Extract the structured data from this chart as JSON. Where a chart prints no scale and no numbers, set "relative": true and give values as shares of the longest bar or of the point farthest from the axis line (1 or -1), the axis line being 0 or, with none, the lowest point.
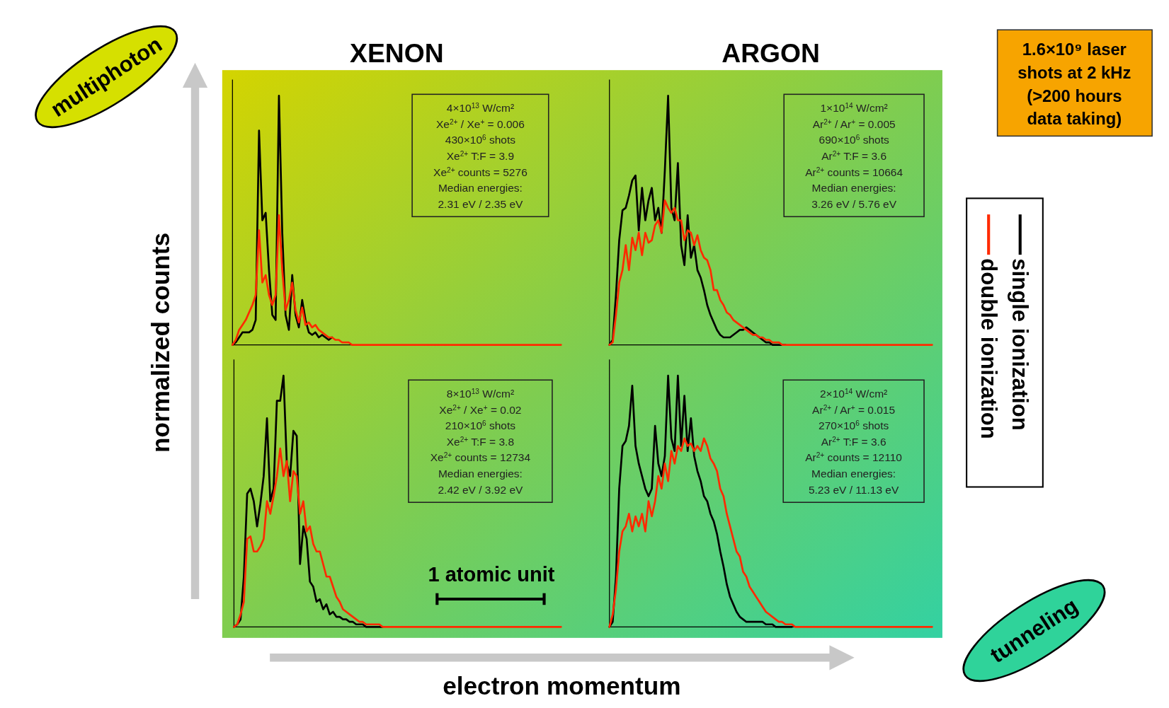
{
  "chart_data": [
    {
      "type": "line",
      "title": "XENON",
      "ylabel": "normalized counts",
      "xlabel": "electron momentum",
      "relative": true,
      "categories": [
        null,
        null,
        null,
        null,
        null,
        null,
        null,
        null,
        null,
        null,
        null,
        null,
        null,
        null,
        null,
        null,
        null,
        null,
        null,
        null,
        null,
        null,
        null,
        null,
        null,
        null,
        null,
        null,
        null,
        null,
        null,
        null,
        null,
        null,
        null,
        null,
        null,
        null,
        null,
        null,
        null,
        null,
        null,
        null,
        null,
        null,
        null,
        null,
        null,
        null,
        null,
        null,
        null,
        null,
        null,
        null,
        null,
        null,
        null,
        null,
        null,
        null,
        null,
        null,
        null,
        null,
        null,
        null,
        null,
        null,
        null,
        null,
        null,
        null,
        null,
        null,
        null,
        null,
        null,
        null,
        null,
        null,
        null,
        null,
        null,
        null,
        null,
        null,
        null,
        null,
        null,
        null,
        null,
        null,
        null,
        null,
        null,
        null,
        null,
        null
      ],
      "series": [
        {
          "color": "#000000",
          "values": [
            0,
            0.01,
            0.03,
            0.05,
            0.05,
            0.05,
            0.06,
            0.1,
            0.86,
            0.5,
            0.53,
            0.3,
            0.12,
            0.1,
            1.0,
            0.45,
            0.12,
            0.06,
            0.28,
            0.12,
            0.07,
            0.18,
            0.1,
            0.05,
            0.04,
            0.05,
            0.03,
            0.04,
            0.03,
            0.02,
            0.03,
            null,
            null,
            null,
            null,
            null,
            null,
            null,
            null,
            null,
            null,
            null,
            null,
            null,
            null,
            null,
            null,
            null,
            null,
            null,
            null,
            null,
            null,
            null,
            null,
            null,
            null,
            null,
            null,
            null,
            null,
            null,
            null,
            null,
            null,
            null,
            null,
            null,
            null,
            null,
            null,
            null,
            null,
            null,
            null,
            null,
            null,
            null,
            null,
            null,
            null,
            null,
            null,
            null,
            null,
            null,
            null,
            null,
            null,
            null,
            null,
            null,
            null,
            null,
            null,
            null,
            null,
            null,
            null,
            null
          ]
        },
        {
          "color": "#ff2a00",
          "values": [
            0,
            0.02,
            0.06,
            0.08,
            0.1,
            0.13,
            0.16,
            0.2,
            0.46,
            0.25,
            0.28,
            0.2,
            0.16,
            0.2,
            0.52,
            0.3,
            0.14,
            0.18,
            0.25,
            0.14,
            0.09,
            0.15,
            0.08,
            0.09,
            0.07,
            0.08,
            0.06,
            0.05,
            0.04,
            0.03,
            0.03,
            0.02,
            0.02,
            0.01,
            0.01,
            0.01,
            0,
            0,
            0,
            0,
            0,
            0,
            0,
            0,
            0,
            0,
            0,
            0,
            0,
            0,
            0,
            0,
            0,
            0,
            0,
            0,
            0,
            0,
            0,
            0,
            0,
            0,
            0,
            0,
            0,
            0,
            0,
            0,
            0,
            0,
            0,
            0,
            0,
            0,
            0,
            0,
            0,
            0,
            0,
            0,
            0,
            0,
            0,
            0,
            0,
            0,
            0,
            0,
            0,
            0,
            0,
            0,
            0,
            0,
            0,
            0,
            0,
            0,
            0,
            0
          ]
        }
      ],
      "annotations": [
        "4×10$^{13}$ W/cm²",
        "Xe$^{2+}$ / Xe$^{+}$ = 0.006",
        "430×10$^{6}$ shots",
        "Xe$^{2+}$ T:F = 3.9",
        "Xe$^{2+}$ counts = 5276",
        "Median energies:",
        "2.31 eV / 2.35 eV"
      ]
    },
    {
      "type": "line",
      "title": "ARGON",
      "relative": true,
      "legend": "right",
      "categories": [
        null,
        null,
        null,
        null,
        null,
        null,
        null,
        null,
        null,
        null,
        null,
        null,
        null,
        null,
        null,
        null,
        null,
        null,
        null,
        null,
        null,
        null,
        null,
        null,
        null,
        null,
        null,
        null,
        null,
        null,
        null,
        null,
        null,
        null,
        null,
        null,
        null,
        null,
        null,
        null,
        null,
        null,
        null,
        null,
        null,
        null,
        null,
        null,
        null,
        null,
        null,
        null,
        null,
        null,
        null,
        null,
        null,
        null,
        null,
        null,
        null,
        null,
        null,
        null,
        null,
        null,
        null,
        null,
        null,
        null,
        null,
        null,
        null,
        null,
        null,
        null,
        null,
        null,
        null,
        null,
        null,
        null,
        null,
        null,
        null,
        null,
        null,
        null,
        null,
        null,
        null,
        null,
        null,
        null,
        null,
        null,
        null,
        null,
        null,
        null
      ],
      "series": [
        {
          "name": "single ionization",
          "color": "#000000",
          "values": [
            0,
            0.02,
            0.2,
            0.42,
            0.54,
            0.55,
            0.6,
            0.66,
            0.68,
            0.46,
            0.63,
            0.5,
            0.58,
            0.63,
            0.5,
            0.55,
            0.45,
            0.7,
            1.0,
            0.55,
            0.5,
            0.73,
            0.4,
            0.32,
            0.52,
            0.35,
            0.4,
            0.3,
            0.27,
            0.22,
            0.16,
            0.12,
            0.09,
            0.06,
            0.04,
            0.03,
            0.03,
            0.03,
            0.04,
            0.05,
            0.06,
            0.06,
            0.07,
            0.06,
            0.05,
            0.04,
            0.03,
            0.02,
            0.01,
            0.01,
            0,
            0,
            0,
            0,
            0,
            null,
            null,
            null,
            null,
            null,
            null,
            null,
            null,
            null,
            null,
            null,
            null,
            null,
            null,
            null,
            null,
            null,
            null,
            null,
            null,
            null,
            null,
            null,
            null,
            null,
            null,
            null,
            null,
            null,
            null,
            null,
            null,
            null,
            null,
            null,
            null,
            null,
            null,
            null,
            null,
            null,
            null,
            null,
            null,
            null
          ]
        },
        {
          "name": "double ionization",
          "color": "#ff2a00",
          "values": [
            0,
            0.01,
            0.12,
            0.25,
            0.3,
            0.4,
            0.3,
            0.43,
            0.38,
            0.45,
            0.36,
            0.45,
            0.41,
            0.42,
            0.48,
            0.5,
            0.45,
            0.58,
            0.55,
            0.53,
            0.55,
            0.5,
            0.5,
            0.42,
            0.46,
            0.45,
            0.4,
            0.44,
            0.38,
            0.35,
            0.34,
            0.3,
            0.22,
            0.22,
            0.18,
            0.16,
            0.13,
            0.12,
            0.1,
            0.09,
            0.08,
            0.07,
            0.06,
            0.05,
            0.04,
            0.04,
            0.03,
            0.03,
            0.02,
            0.02,
            0.01,
            0.01,
            0.01,
            0,
            0,
            0,
            0,
            0,
            0,
            0,
            0,
            0,
            0,
            0,
            0,
            0,
            0,
            0,
            0,
            0,
            0,
            0,
            0,
            0,
            0,
            0,
            0,
            0,
            0,
            0,
            0,
            0,
            0,
            0,
            0,
            0,
            0,
            0,
            0,
            0,
            0,
            0,
            0,
            0,
            0,
            0,
            0,
            0,
            0,
            0
          ]
        }
      ],
      "annotations": [
        "1×10$^{14}$ W/cm²",
        "Ar$^{2+}$ / Ar$^{+}$ = 0.005",
        "690×10$^{6}$ shots",
        "Ar$^{2+}$ T:F = 3.6",
        "Ar$^{2+}$ counts = 10664",
        "Median energies:",
        "3.26 eV / 5.76 eV"
      ]
    },
    {
      "type": "line",
      "relative": true,
      "categories": [
        null,
        null,
        null,
        null,
        null,
        null,
        null,
        null,
        null,
        null,
        null,
        null,
        null,
        null,
        null,
        null,
        null,
        null,
        null,
        null,
        null,
        null,
        null,
        null,
        null,
        null,
        null,
        null,
        null,
        null,
        null,
        null,
        null,
        null,
        null,
        null,
        null,
        null,
        null,
        null,
        null,
        null,
        null,
        null,
        null,
        null,
        null,
        null,
        null,
        null,
        null,
        null,
        null,
        null,
        null,
        null,
        null,
        null,
        null,
        null,
        null,
        null,
        null,
        null,
        null,
        null,
        null,
        null,
        null,
        null,
        null,
        null,
        null,
        null,
        null,
        null,
        null,
        null,
        null,
        null,
        null,
        null,
        null,
        null,
        null,
        null,
        null,
        null,
        null,
        null,
        null,
        null,
        null,
        null,
        null,
        null,
        null,
        null,
        null,
        null
      ],
      "series": [
        {
          "color": "#000000",
          "values": [
            0,
            0.01,
            0.03,
            0.2,
            0.53,
            0.55,
            0.5,
            0.4,
            0.49,
            0.6,
            0.83,
            0.5,
            0.55,
            0.9,
            0.9,
            1.0,
            0.65,
            0.6,
            0.78,
            0.76,
            0.25,
            0.4,
            0.35,
            0.18,
            0.16,
            0.1,
            0.11,
            0.07,
            0.09,
            0.05,
            0.06,
            0.04,
            0.04,
            0.03,
            0.03,
            0.02,
            0.02,
            0.01,
            0.01,
            0.01,
            0,
            0,
            0,
            0,
            0,
            0,
            null,
            null,
            null,
            null,
            null,
            null,
            null,
            null,
            null,
            null,
            null,
            null,
            null,
            null,
            null,
            null,
            null,
            null,
            null,
            null,
            null,
            null,
            null,
            null,
            null,
            null,
            null,
            null,
            null,
            null,
            null,
            null,
            null,
            null,
            null,
            null,
            null,
            null,
            null,
            null,
            null,
            null,
            null,
            null,
            null,
            null,
            null,
            null,
            null,
            null,
            null,
            null,
            null,
            null
          ]
        },
        {
          "color": "#ff2a00",
          "values": [
            0,
            0.01,
            0.05,
            0.1,
            0.35,
            0.36,
            0.3,
            0.3,
            0.32,
            0.35,
            0.5,
            0.45,
            0.52,
            0.6,
            0.71,
            0.6,
            0.66,
            0.5,
            0.62,
            0.6,
            0.45,
            0.5,
            0.38,
            0.4,
            0.33,
            0.3,
            0.3,
            0.25,
            0.2,
            0.2,
            0.16,
            0.12,
            0.1,
            0.07,
            0.06,
            0.05,
            0.04,
            0.03,
            0.02,
            0.02,
            0.01,
            0.01,
            0.01,
            0.01,
            0.01,
            0,
            0,
            0,
            0,
            0,
            0,
            0,
            0,
            0,
            0,
            0,
            0,
            0,
            0,
            0,
            0,
            0,
            0,
            0,
            0,
            0,
            0,
            0,
            0,
            0,
            0,
            0,
            0,
            0,
            0,
            0,
            0,
            0,
            0,
            0,
            0,
            0,
            0,
            0,
            0,
            0,
            0,
            0,
            0,
            0,
            0,
            0,
            0,
            0,
            0,
            0,
            0,
            0,
            0,
            0
          ]
        }
      ],
      "annotations": [
        "8×10$^{13}$ W/cm²",
        "Xe$^{2+}$ / Xe$^{+}$ = 0.02",
        "210×10$^{6}$ shots",
        "Xe$^{2+}$ T:F = 3.8",
        "Xe$^{2+}$ counts = 12734",
        "Median energies:",
        "2.42 eV / 3.92 eV",
        "1 atomic unit"
      ]
    },
    {
      "type": "line",
      "relative": true,
      "categories": [
        null,
        null,
        null,
        null,
        null,
        null,
        null,
        null,
        null,
        null,
        null,
        null,
        null,
        null,
        null,
        null,
        null,
        null,
        null,
        null,
        null,
        null,
        null,
        null,
        null,
        null,
        null,
        null,
        null,
        null,
        null,
        null,
        null,
        null,
        null,
        null,
        null,
        null,
        null,
        null,
        null,
        null,
        null,
        null,
        null,
        null,
        null,
        null,
        null,
        null,
        null,
        null,
        null,
        null,
        null,
        null,
        null,
        null,
        null,
        null,
        null,
        null,
        null,
        null,
        null,
        null,
        null,
        null,
        null,
        null,
        null,
        null,
        null,
        null,
        null,
        null,
        null,
        null,
        null,
        null,
        null,
        null,
        null,
        null,
        null,
        null,
        null,
        null,
        null,
        null,
        null,
        null,
        null,
        null,
        null,
        null,
        null,
        null,
        null,
        null
      ],
      "series": [
        {
          "color": "#000000",
          "values": [
            0,
            0.02,
            0.2,
            0.55,
            0.72,
            0.74,
            0.8,
            0.96,
            0.72,
            0.65,
            0.6,
            0.55,
            0.52,
            0.55,
            0.8,
            0.65,
            0.6,
            0.68,
            1.0,
            0.75,
            0.7,
            1.0,
            0.72,
            0.92,
            0.7,
            0.83,
            0.68,
            0.62,
            0.58,
            0.52,
            0.5,
            0.45,
            0.42,
            0.37,
            0.3,
            0.24,
            0.17,
            0.12,
            0.09,
            0.06,
            0.04,
            0.03,
            0.02,
            0.02,
            0.02,
            0.02,
            0.02,
            0.02,
            0.01,
            0.01,
            0.01,
            0,
            0,
            0,
            0,
            0,
            0,
            null,
            null,
            null,
            null,
            null,
            null,
            null,
            null,
            null,
            null,
            null,
            null,
            null,
            null,
            null,
            null,
            null,
            null,
            null,
            null,
            null,
            null,
            null,
            null,
            null,
            null,
            null,
            null,
            null,
            null,
            null,
            null,
            null,
            null,
            null,
            null,
            null,
            null,
            null,
            null,
            null,
            null,
            null
          ]
        },
        {
          "color": "#ff2a00",
          "values": [
            0,
            0.05,
            0.15,
            0.3,
            0.38,
            0.4,
            0.45,
            0.38,
            0.44,
            0.4,
            0.45,
            0.38,
            0.5,
            0.44,
            0.5,
            0.6,
            0.55,
            0.65,
            0.58,
            0.7,
            0.65,
            0.72,
            0.7,
            0.75,
            0.72,
            0.73,
            0.7,
            0.72,
            0.7,
            0.75,
            0.72,
            0.67,
            0.65,
            0.62,
            0.55,
            0.52,
            0.45,
            0.4,
            0.35,
            0.3,
            0.28,
            0.22,
            0.2,
            0.16,
            0.14,
            0.12,
            0.1,
            0.08,
            0.06,
            0.05,
            0.04,
            0.03,
            0.02,
            0.02,
            0.01,
            0.01,
            0.01,
            0,
            0,
            0,
            0,
            0,
            0,
            0,
            0,
            0,
            0,
            0,
            0,
            0,
            0,
            0,
            0,
            0,
            0,
            0,
            0,
            0,
            0,
            0,
            0,
            0,
            0,
            0,
            0,
            0,
            0,
            0,
            0,
            0,
            0,
            0,
            0,
            0,
            0,
            0,
            0,
            0,
            0,
            0
          ]
        }
      ],
      "annotations": [
        "2×10$^{14}$ W/cm²",
        "Ar$^{2+}$ / Ar$^{+}$ = 0.015",
        "270×10$^{6}$ shots",
        "Ar$^{2+}$ T:F = 3.6",
        "Ar$^{2+}$ counts = 12110",
        "Median energies:",
        "5.23 eV / 11.13 eV"
      ]
    },
    {
      "type": "other",
      "annotations": [
        "multiphoton",
        "tunneling",
        "1.6×10⁹ laser shots at 2 kHz (>200 hours data taking)"
      ]
    }
  ]
}
